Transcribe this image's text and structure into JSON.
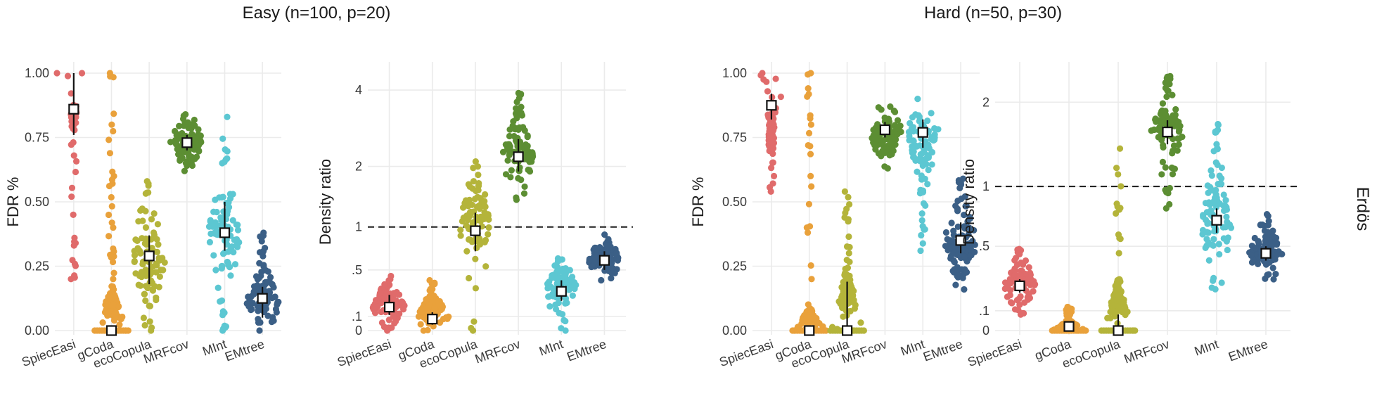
{
  "figure": {
    "group_titles": [
      "Easy (n=100, p=20)",
      "Hard (n=50, p=30)"
    ],
    "strip_label": "Erdös"
  },
  "colors": {
    "SpiecEasi": "#E06B6B",
    "gCoda": "#E9A13B",
    "ecoCopula": "#B4B43A",
    "MRFcov": "#5C8E33",
    "MInt": "#5CC7D2",
    "EMtree": "#3B5F86",
    "grid": "#EBEBEB",
    "text": "#3a3a3a"
  },
  "chart_data": [
    {
      "type": "scatter",
      "subtype": "beeswarm with mean point and error bar",
      "group": "Easy (n=100, p=20)",
      "ylabel": "FDR %",
      "y_scale": "linear",
      "ylim": [
        0,
        1
      ],
      "yticks": [
        0,
        0.25,
        0.5,
        0.75,
        1
      ],
      "ytick_labels": [
        "0.00",
        "0.25",
        "0.50",
        "0.75",
        "1.00"
      ],
      "categories": [
        "SpiecEasi",
        "gCoda",
        "ecoCopula",
        "MRFcov",
        "MInt",
        "EMtree"
      ],
      "series": [
        {
          "category": "SpiecEasi",
          "mean": 0.86,
          "lower": 0.76,
          "upper": 1.0,
          "spread": [
            0.2,
            1.0
          ],
          "cluster": [
            1.0,
            0.78,
            0.9
          ]
        },
        {
          "category": "gCoda",
          "mean": 0.0,
          "lower": 0.0,
          "upper": 0.0,
          "spread": [
            0.0,
            1.0
          ],
          "cluster": [
            0.0,
            0.0,
            0.2
          ]
        },
        {
          "category": "ecoCopula",
          "mean": 0.29,
          "lower": 0.18,
          "upper": 0.37,
          "spread": [
            0.0,
            0.58
          ],
          "cluster": [
            0.29,
            0.05,
            0.5
          ]
        },
        {
          "category": "MRFcov",
          "mean": 0.73,
          "lower": 0.7,
          "upper": 0.76,
          "spread": [
            0.62,
            0.84
          ],
          "cluster": [
            0.73,
            0.63,
            0.83
          ]
        },
        {
          "category": "MInt",
          "mean": 0.38,
          "lower": 0.31,
          "upper": 0.5,
          "spread": [
            0.0,
            0.83
          ],
          "cluster": [
            0.38,
            0.15,
            0.6
          ]
        },
        {
          "category": "EMtree",
          "mean": 0.125,
          "lower": 0.05,
          "upper": 0.17,
          "spread": [
            0.0,
            0.38
          ],
          "cluster": [
            0.1,
            0.0,
            0.28
          ]
        }
      ]
    },
    {
      "type": "scatter",
      "subtype": "beeswarm with mean point and error bar",
      "group": "Easy (n=100, p=20)",
      "ylabel": "Density ratio",
      "y_scale": "log1p",
      "ylim": [
        0,
        4.6
      ],
      "reference_line": 1,
      "yticks": [
        0,
        0.1,
        0.5,
        1,
        2,
        4
      ],
      "ytick_labels": [
        "0",
        ".1",
        ".5",
        "1",
        "2",
        "4"
      ],
      "categories": [
        "SpiecEasi",
        "gCoda",
        "ecoCopula",
        "MRFcov",
        "MInt",
        "EMtree"
      ],
      "series": [
        {
          "category": "SpiecEasi",
          "mean": 0.17,
          "lower": 0.11,
          "upper": 0.27,
          "spread": [
            0.0,
            0.44
          ],
          "cluster": [
            0.17,
            0.05,
            0.4
          ]
        },
        {
          "category": "gCoda",
          "mean": 0.08,
          "lower": 0.04,
          "upper": 0.13,
          "spread": [
            0.0,
            0.4
          ],
          "cluster": [
            0.09,
            0.03,
            0.3
          ]
        },
        {
          "category": "ecoCopula",
          "mean": 0.95,
          "lower": 0.7,
          "upper": 1.2,
          "spread": [
            0.0,
            2.1
          ],
          "cluster": [
            0.95,
            0.4,
            1.9
          ]
        },
        {
          "category": "MRFcov",
          "mean": 2.2,
          "lower": 1.9,
          "upper": 2.6,
          "spread": [
            1.4,
            3.9
          ],
          "cluster": [
            2.2,
            1.5,
            3.2
          ]
        },
        {
          "category": "MInt",
          "mean": 0.3,
          "lower": 0.22,
          "upper": 0.4,
          "spread": [
            0.0,
            0.62
          ],
          "cluster": [
            0.3,
            0.12,
            0.6
          ]
        },
        {
          "category": "EMtree",
          "mean": 0.6,
          "lower": 0.5,
          "upper": 0.7,
          "spread": [
            0.4,
            0.9
          ],
          "cluster": [
            0.6,
            0.42,
            0.85
          ]
        }
      ]
    },
    {
      "type": "scatter",
      "subtype": "beeswarm with mean point and error bar",
      "group": "Hard (n=50, p=30)",
      "ylabel": "FDR %",
      "y_scale": "linear",
      "ylim": [
        0,
        1
      ],
      "yticks": [
        0,
        0.25,
        0.5,
        0.75,
        1
      ],
      "ytick_labels": [
        "0.00",
        "0.25",
        "0.50",
        "0.75",
        "1.00"
      ],
      "categories": [
        "SpiecEasi",
        "gCoda",
        "ecoCopula",
        "MRFcov",
        "MInt",
        "EMtree"
      ],
      "series": [
        {
          "category": "SpiecEasi",
          "mean": 0.875,
          "lower": 0.82,
          "upper": 0.92,
          "spread": [
            0.54,
            1.0
          ],
          "cluster": [
            1.0,
            0.65,
            0.9
          ]
        },
        {
          "category": "gCoda",
          "mean": 0.0,
          "lower": 0.0,
          "upper": 0.0,
          "spread": [
            0.0,
            1.0
          ],
          "cluster": [
            0.0,
            0.0,
            0.1
          ]
        },
        {
          "category": "ecoCopula",
          "mean": 0.0,
          "lower": 0.0,
          "upper": 0.19,
          "spread": [
            0.0,
            0.54
          ],
          "cluster": [
            0.0,
            0.0,
            0.3
          ]
        },
        {
          "category": "MRFcov",
          "mean": 0.78,
          "lower": 0.75,
          "upper": 0.81,
          "spread": [
            0.63,
            0.87
          ],
          "cluster": [
            0.78,
            0.65,
            0.86
          ]
        },
        {
          "category": "MInt",
          "mean": 0.77,
          "lower": 0.71,
          "upper": 0.82,
          "spread": [
            0.31,
            0.9
          ],
          "cluster": [
            0.77,
            0.55,
            0.9
          ]
        },
        {
          "category": "EMtree",
          "mean": 0.35,
          "lower": 0.3,
          "upper": 0.42,
          "spread": [
            0.16,
            0.59
          ],
          "cluster": [
            0.35,
            0.17,
            0.47
          ]
        }
      ]
    },
    {
      "type": "scatter",
      "subtype": "beeswarm with mean point and error bar",
      "group": "Hard (n=50, p=30)",
      "ylabel": "Density ratio",
      "y_scale": "log1p",
      "ylim": [
        0,
        2.45
      ],
      "reference_line": 1,
      "yticks": [
        0,
        0.1,
        0.5,
        1,
        2
      ],
      "ytick_labels": [
        "0",
        ".1",
        ".5",
        "1",
        "2"
      ],
      "categories": [
        "SpiecEasi",
        "gCoda",
        "ecoCopula",
        "MRFcov",
        "MInt",
        "EMtree"
      ],
      "series": [
        {
          "category": "SpiecEasi",
          "mean": 0.24,
          "lower": 0.2,
          "upper": 0.28,
          "spread": [
            0.08,
            0.48
          ],
          "cluster": [
            0.24,
            0.1,
            0.42
          ]
        },
        {
          "category": "gCoda",
          "mean": 0.02,
          "lower": 0.0,
          "upper": 0.03,
          "spread": [
            0.0,
            0.12
          ],
          "cluster": [
            0.0,
            0.0,
            0.06
          ]
        },
        {
          "category": "ecoCopula",
          "mean": 0.0,
          "lower": 0.0,
          "upper": 0.08,
          "spread": [
            0.0,
            1.4
          ],
          "cluster": [
            0.0,
            0.0,
            0.3
          ]
        },
        {
          "category": "MRFcov",
          "mean": 1.6,
          "lower": 1.45,
          "upper": 1.75,
          "spread": [
            0.8,
            2.4
          ],
          "cluster": [
            1.6,
            1.2,
            2.1
          ]
        },
        {
          "category": "MInt",
          "mean": 0.7,
          "lower": 0.6,
          "upper": 0.8,
          "spread": [
            0.22,
            1.7
          ],
          "cluster": [
            0.7,
            0.35,
            1.2
          ]
        },
        {
          "category": "EMtree",
          "mean": 0.45,
          "lower": 0.4,
          "upper": 0.5,
          "spread": [
            0.28,
            0.75
          ],
          "cluster": [
            0.45,
            0.3,
            0.7
          ]
        }
      ]
    }
  ]
}
